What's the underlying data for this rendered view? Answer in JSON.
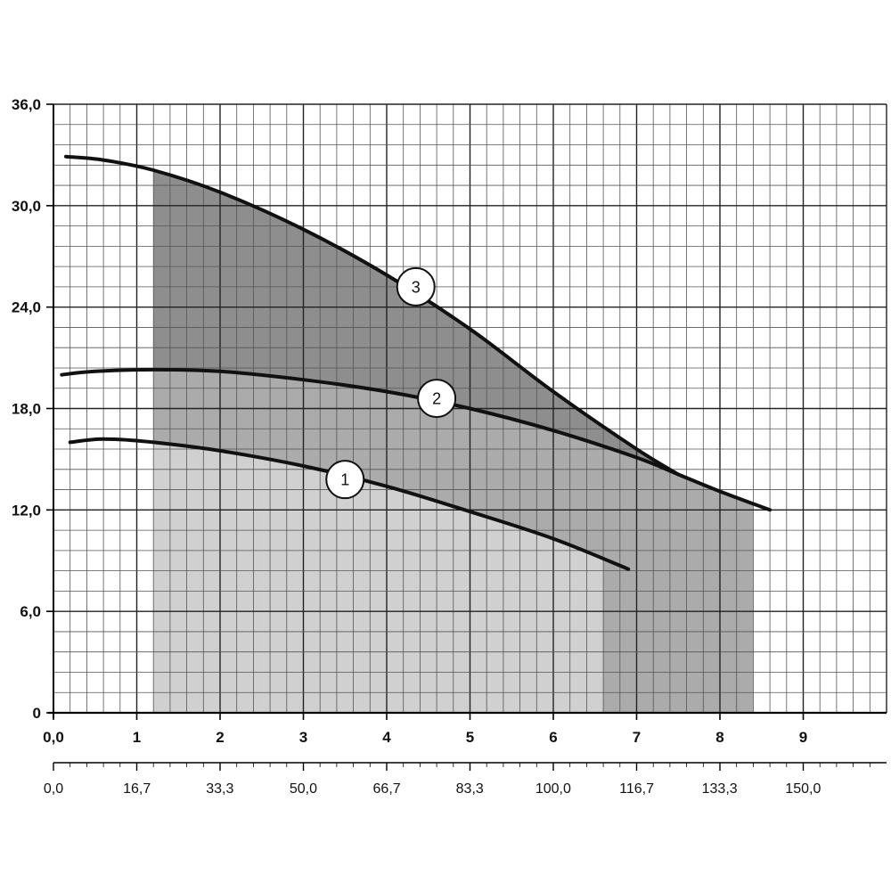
{
  "chart_data": {
    "type": "line",
    "title": "",
    "xlabel": "",
    "ylabel": "",
    "x_primary": {
      "range": [
        0,
        10
      ],
      "ticks": [
        0,
        1,
        2,
        3,
        4,
        5,
        6,
        7,
        8,
        9
      ],
      "tick_labels": [
        "0,0",
        "1",
        "2",
        "3",
        "4",
        "5",
        "6",
        "7",
        "8",
        "9"
      ]
    },
    "x_secondary": {
      "range": [
        0,
        166.7
      ],
      "ticks": [
        0,
        16.7,
        33.3,
        50.0,
        66.7,
        83.3,
        100.0,
        116.7,
        133.3,
        150.0
      ],
      "tick_labels": [
        "0,0",
        "16,7",
        "33,3",
        "50,0",
        "66,7",
        "83,3",
        "100,0",
        "116,7",
        "133,3",
        "150,0"
      ]
    },
    "y": {
      "range": [
        0,
        36
      ],
      "ticks": [
        0,
        6,
        12,
        18,
        24,
        30,
        36
      ],
      "tick_labels": [
        "0",
        "6,0",
        "12,0",
        "18,0",
        "24,0",
        "30,0",
        "36,0"
      ]
    },
    "grid": true,
    "series": [
      {
        "label": "1",
        "label_at": [
          3.5,
          13.8
        ],
        "points": [
          [
            0.2,
            16.0
          ],
          [
            0.6,
            16.2
          ],
          [
            1.2,
            16.0
          ],
          [
            2.0,
            15.5
          ],
          [
            3.0,
            14.6
          ],
          [
            4.0,
            13.4
          ],
          [
            5.0,
            11.9
          ],
          [
            6.0,
            10.3
          ],
          [
            6.9,
            8.5
          ]
        ]
      },
      {
        "label": "2",
        "label_at": [
          4.6,
          18.6
        ],
        "points": [
          [
            0.1,
            20.0
          ],
          [
            0.5,
            20.2
          ],
          [
            1.2,
            20.3
          ],
          [
            2.0,
            20.2
          ],
          [
            3.0,
            19.7
          ],
          [
            4.0,
            19.0
          ],
          [
            5.0,
            18.0
          ],
          [
            6.0,
            16.7
          ],
          [
            7.0,
            15.1
          ],
          [
            7.5,
            14.1
          ],
          [
            8.0,
            13.1
          ],
          [
            8.6,
            12.0
          ]
        ]
      },
      {
        "label": "3",
        "label_at": [
          4.35,
          25.2
        ],
        "points": [
          [
            0.15,
            32.9
          ],
          [
            0.6,
            32.7
          ],
          [
            1.2,
            32.1
          ],
          [
            2.0,
            30.8
          ],
          [
            3.0,
            28.6
          ],
          [
            4.0,
            25.9
          ],
          [
            5.0,
            22.7
          ],
          [
            6.0,
            19.0
          ],
          [
            7.0,
            15.6
          ],
          [
            7.5,
            14.1
          ]
        ]
      }
    ],
    "shaded_regions": [
      {
        "name": "light",
        "color": "#d0d0d0",
        "outline_series": "1",
        "points": [
          [
            1.2,
            0
          ],
          [
            1.2,
            16.0
          ],
          [
            2.0,
            15.5
          ],
          [
            3.0,
            14.6
          ],
          [
            4.0,
            13.4
          ],
          [
            5.0,
            11.9
          ],
          [
            6.0,
            10.3
          ],
          [
            6.6,
            9.2
          ],
          [
            6.6,
            0
          ]
        ]
      },
      {
        "name": "medium",
        "color": "#ababab",
        "points": [
          [
            1.2,
            16.0
          ],
          [
            2.0,
            15.5
          ],
          [
            3.0,
            14.6
          ],
          [
            4.0,
            13.4
          ],
          [
            5.0,
            11.9
          ],
          [
            6.0,
            10.3
          ],
          [
            6.6,
            9.2
          ],
          [
            6.6,
            0
          ],
          [
            8.4,
            0
          ],
          [
            8.4,
            12.3
          ],
          [
            8.0,
            13.1
          ],
          [
            7.5,
            14.1
          ],
          [
            7.0,
            15.1
          ],
          [
            6.0,
            16.7
          ],
          [
            5.0,
            18.0
          ],
          [
            4.0,
            19.0
          ],
          [
            3.0,
            19.7
          ],
          [
            2.0,
            20.2
          ],
          [
            1.2,
            20.3
          ]
        ]
      },
      {
        "name": "dark",
        "color": "#8e8e8e",
        "points": [
          [
            1.2,
            20.3
          ],
          [
            2.0,
            20.2
          ],
          [
            3.0,
            19.7
          ],
          [
            4.0,
            19.0
          ],
          [
            5.0,
            18.0
          ],
          [
            6.0,
            16.7
          ],
          [
            7.0,
            15.1
          ],
          [
            7.5,
            14.1
          ],
          [
            7.0,
            15.6
          ],
          [
            6.0,
            19.0
          ],
          [
            5.0,
            22.7
          ],
          [
            4.0,
            25.9
          ],
          [
            3.0,
            28.6
          ],
          [
            2.0,
            30.8
          ],
          [
            1.2,
            32.1
          ]
        ]
      }
    ],
    "colors": {
      "grid_minor": "#555555",
      "grid_major": "#222222",
      "curve": "#111111",
      "label_fill": "#ffffff"
    }
  }
}
